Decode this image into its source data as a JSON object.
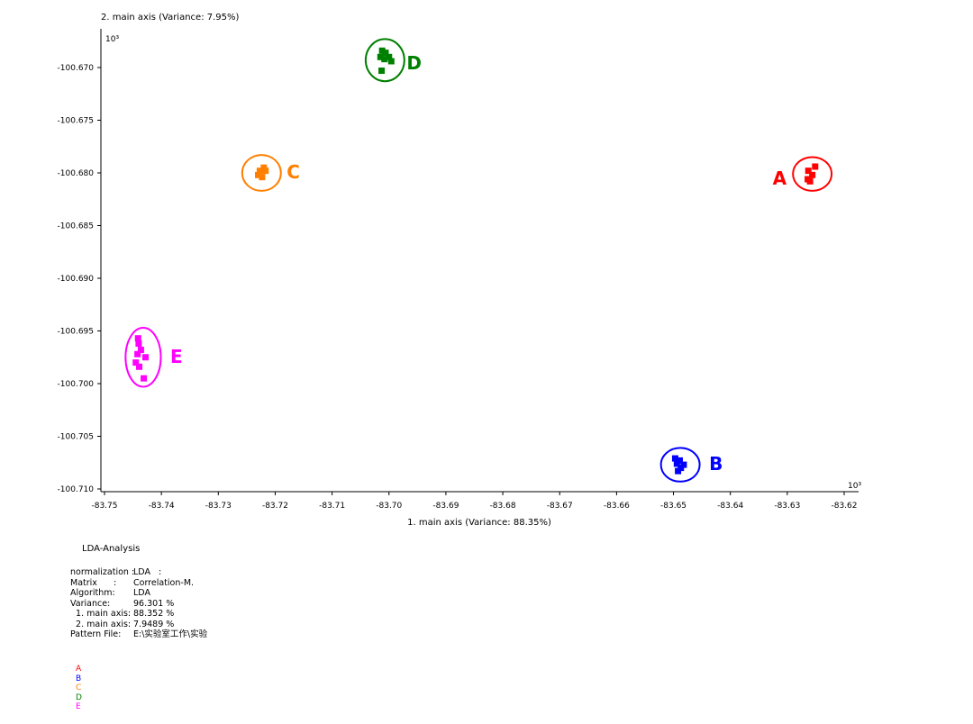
{
  "chart_data": {
    "type": "scatter",
    "title": "",
    "xlabel": "1. main axis (Variance: 88.35%)",
    "ylabel": "2. main axis (Variance: 7.95%)",
    "x_scale_label": "10³",
    "y_scale_label": "10³",
    "xlim": [
      -83.753,
      -83.618
    ],
    "ylim": [
      -100.7105,
      -100.6665
    ],
    "x_ticks": [
      -83.75,
      -83.74,
      -83.73,
      -83.72,
      -83.71,
      -83.7,
      -83.69,
      -83.68,
      -83.67,
      -83.66,
      -83.65,
      -83.64,
      -83.63,
      -83.62
    ],
    "x_tick_labels": [
      "-83.75",
      "-83.74",
      "-83.73",
      "-83.72",
      "-83.71",
      "-83.70",
      "-83.69",
      "-83.68",
      "-83.67",
      "-83.66",
      "-83.65",
      "-83.64",
      "-83.63",
      "-83.62"
    ],
    "y_ticks": [
      -100.67,
      -100.675,
      -100.68,
      -100.685,
      -100.69,
      -100.695,
      -100.7,
      -100.705,
      -100.71
    ],
    "y_tick_labels": [
      "-100.670",
      "-100.675",
      "-100.680",
      "-100.685",
      "-100.690",
      "-100.695",
      "-100.700",
      "-100.705",
      "-100.710"
    ],
    "grid": false,
    "legend": "bottom-left",
    "series": [
      {
        "name": "A",
        "color": "#ff0000",
        "ellipse": {
          "cx": -83.6256,
          "cy": -100.6801,
          "rx": 0.0034,
          "ry": 0.0016
        },
        "points": [
          [
            -83.6251,
            -100.6794
          ],
          [
            -83.6263,
            -100.6798
          ],
          [
            -83.6256,
            -100.6802
          ],
          [
            -83.6264,
            -100.6806
          ],
          [
            -83.626,
            -100.6808
          ]
        ]
      },
      {
        "name": "B",
        "color": "#0000ff",
        "ellipse": {
          "cx": -83.6488,
          "cy": -100.7077,
          "rx": 0.0034,
          "ry": 0.0016
        },
        "points": [
          [
            -83.6497,
            -100.7071
          ],
          [
            -83.6489,
            -100.7073
          ],
          [
            -83.6494,
            -100.7076
          ],
          [
            -83.6482,
            -100.7077
          ],
          [
            -83.6487,
            -100.708
          ],
          [
            -83.6492,
            -100.7083
          ]
        ]
      },
      {
        "name": "C",
        "color": "#ff8000",
        "ellipse": {
          "cx": -83.7224,
          "cy": -100.68,
          "rx": 0.0034,
          "ry": 0.0017
        },
        "points": [
          [
            -83.722,
            -100.6795
          ],
          [
            -83.7227,
            -100.6798
          ],
          [
            -83.723,
            -100.6802
          ],
          [
            -83.7217,
            -100.6798
          ],
          [
            -83.7223,
            -100.6804
          ]
        ]
      },
      {
        "name": "D",
        "color": "#008000",
        "ellipse": {
          "cx": -83.7007,
          "cy": -100.6693,
          "rx": 0.0034,
          "ry": 0.002
        },
        "points": [
          [
            -83.7012,
            -100.6684
          ],
          [
            -83.7006,
            -100.6686
          ],
          [
            -83.7,
            -100.669
          ],
          [
            -83.7015,
            -100.669
          ],
          [
            -83.7008,
            -100.6692
          ],
          [
            -83.6996,
            -100.6694
          ],
          [
            -83.7013,
            -100.6703
          ]
        ]
      },
      {
        "name": "E",
        "color": "#ff00ff",
        "ellipse": {
          "cx": -83.7432,
          "cy": -100.6975,
          "rx": 0.0031,
          "ry": 0.0028
        },
        "points": [
          [
            -83.7441,
            -100.6957
          ],
          [
            -83.744,
            -100.6962
          ],
          [
            -83.7436,
            -100.6968
          ],
          [
            -83.7442,
            -100.6972
          ],
          [
            -83.7428,
            -100.6975
          ],
          [
            -83.7445,
            -100.698
          ],
          [
            -83.7439,
            -100.6984
          ],
          [
            -83.7431,
            -100.6995
          ]
        ]
      }
    ]
  },
  "info": {
    "title": "LDA-Analysis",
    "rows": [
      {
        "key": "normalization :",
        "value": "LDA   :"
      },
      {
        "key": "Matrix      :",
        "value": "Correlation-M."
      },
      {
        "key": "Algorithm:",
        "value": "LDA"
      },
      {
        "key": "Variance:",
        "value": "96.301 %"
      },
      {
        "key": "  1. main axis:",
        "value": "88.352 %"
      },
      {
        "key": "  2. main axis:",
        "value": "7.9489 %"
      },
      {
        "key": "Pattern File:",
        "value": "E:\\实验室工作\\实验  "
      }
    ]
  },
  "legend_items": [
    "A",
    "B",
    "C",
    "D",
    "E"
  ]
}
